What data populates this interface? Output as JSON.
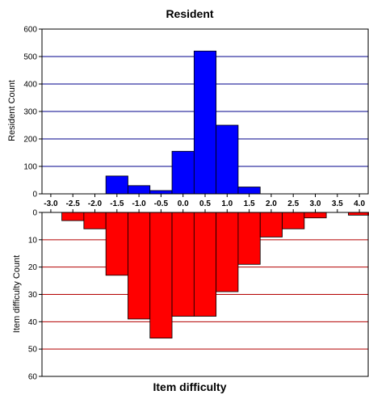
{
  "chart_data": [
    {
      "type": "bar",
      "title": "Resident",
      "ylabel": "Resident Count",
      "ylim": [
        0,
        600
      ],
      "yticks": [
        0,
        100,
        200,
        300,
        400,
        500,
        600
      ],
      "grid": true,
      "bar_color": "#0000ff",
      "grid_color": "#00008b",
      "bin_width": 0.5,
      "bins": [
        {
          "x": -1.5,
          "value": 65
        },
        {
          "x": -1.0,
          "value": 30
        },
        {
          "x": -0.5,
          "value": 12
        },
        {
          "x": 0.0,
          "value": 155
        },
        {
          "x": 0.5,
          "value": 520
        },
        {
          "x": 1.0,
          "value": 250
        },
        {
          "x": 1.5,
          "value": 25
        }
      ]
    },
    {
      "type": "bar",
      "title": "",
      "ylabel": "Item difficulty Count",
      "xlabel": "Item difficulty",
      "ylim": [
        0,
        60
      ],
      "yticks": [
        0,
        10,
        20,
        30,
        40,
        50,
        60
      ],
      "inverted": true,
      "grid": true,
      "bar_color": "#ff0000",
      "grid_color": "#b30000",
      "bin_width": 0.5,
      "bins": [
        {
          "x": -2.5,
          "value": 3
        },
        {
          "x": -2.0,
          "value": 6
        },
        {
          "x": -1.5,
          "value": 23
        },
        {
          "x": -1.0,
          "value": 39
        },
        {
          "x": -0.5,
          "value": 46
        },
        {
          "x": 0.0,
          "value": 38
        },
        {
          "x": 0.5,
          "value": 38
        },
        {
          "x": 1.0,
          "value": 29
        },
        {
          "x": 1.5,
          "value": 19
        },
        {
          "x": 2.0,
          "value": 9
        },
        {
          "x": 2.5,
          "value": 6
        },
        {
          "x": 3.0,
          "value": 2
        },
        {
          "x": 4.0,
          "value": 1
        }
      ]
    }
  ],
  "shared_axis": {
    "xlim": [
      -3.2,
      4.2
    ],
    "tick_values": [
      -3.0,
      -2.5,
      -2.0,
      -1.5,
      -1.0,
      -0.5,
      0.0,
      0.5,
      1.0,
      1.5,
      2.0,
      2.5,
      3.0,
      3.5,
      4.0
    ],
    "tick_labels": [
      "-3.0",
      "-2.5",
      "-2.0",
      "-1.5",
      "-1.0",
      "-0.5",
      "0.0",
      "0.5",
      "1.0",
      "1.5",
      "2.0",
      "2.5",
      "3.0",
      "3.5",
      "4.0"
    ]
  }
}
